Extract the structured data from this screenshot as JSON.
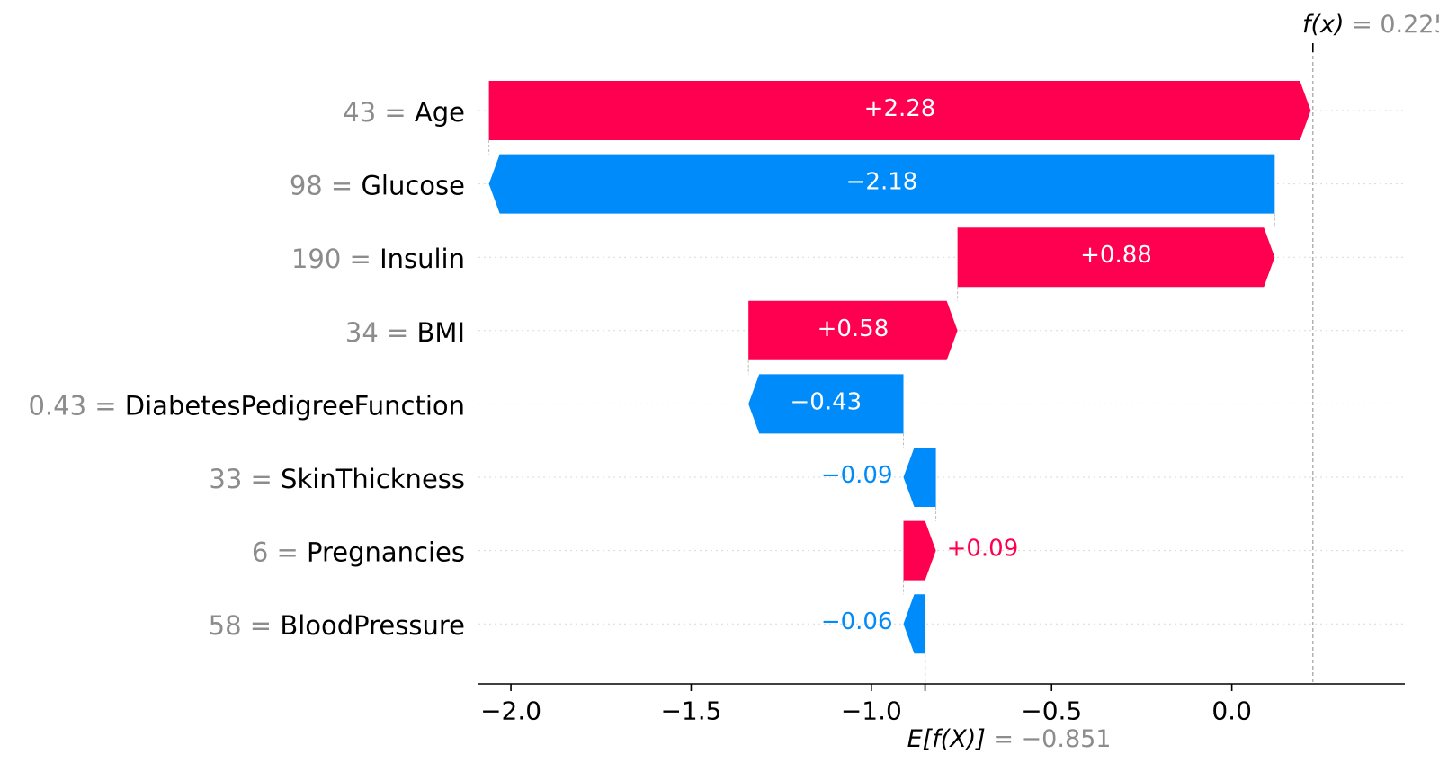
{
  "chart_data": {
    "type": "bar",
    "subtype": "waterfall",
    "base_value": -0.851,
    "output_value": 0.225,
    "base_label": {
      "prefix": "E[f(X)]",
      "equals": " = ",
      "value_text": "−0.851"
    },
    "output_label": {
      "prefix": "f(x)",
      "equals": " = ",
      "value_text": "0.225"
    },
    "features": [
      {
        "name": "Age",
        "value_text": "43",
        "contribution": 2.28,
        "label": "+2.28"
      },
      {
        "name": "Glucose",
        "value_text": "98",
        "contribution": -2.18,
        "label": "−2.18"
      },
      {
        "name": "Insulin",
        "value_text": "190",
        "contribution": 0.88,
        "label": "+0.88"
      },
      {
        "name": "BMI",
        "value_text": "34",
        "contribution": 0.58,
        "label": "+0.58"
      },
      {
        "name": "DiabetesPedigreeFunction",
        "value_text": "0.43",
        "contribution": -0.43,
        "label": "−0.43"
      },
      {
        "name": "SkinThickness",
        "value_text": "33",
        "contribution": -0.09,
        "label": "−0.09"
      },
      {
        "name": "Pregnancies",
        "value_text": "6",
        "contribution": 0.09,
        "label": "+0.09"
      },
      {
        "name": "BloodPressure",
        "value_text": "58",
        "contribution": -0.06,
        "label": "−0.06"
      }
    ],
    "x_ticks": [
      {
        "value": -2.0,
        "label": "−2.0"
      },
      {
        "value": -1.5,
        "label": "−1.5"
      },
      {
        "value": -1.0,
        "label": "−1.0"
      },
      {
        "value": -0.5,
        "label": "−0.5"
      },
      {
        "value": 0.0,
        "label": "0.0"
      }
    ],
    "xlim": [
      -2.09,
      0.48
    ],
    "grid": true,
    "colors": {
      "positive": "#ff0051",
      "negative": "#008bfb",
      "text_gray": "#8c8c8c"
    }
  }
}
